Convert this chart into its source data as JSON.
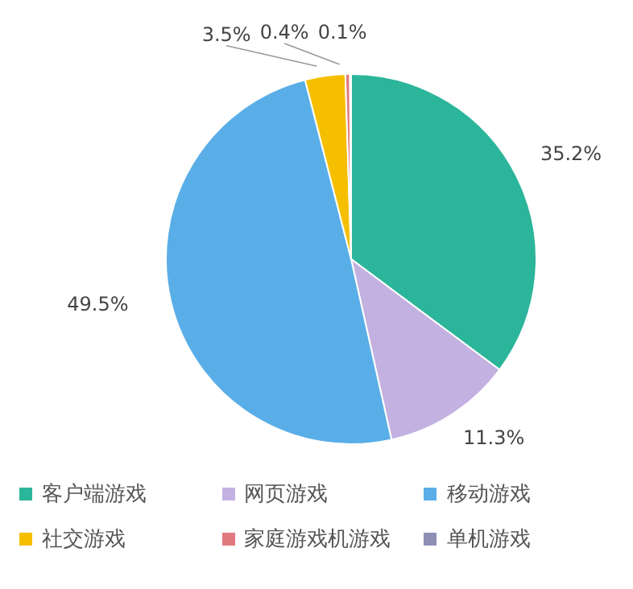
{
  "chart_data": {
    "type": "pie",
    "categories": [
      "客户端游戏",
      "网页游戏",
      "移动游戏",
      "社交游戏",
      "家庭游戏机游戏",
      "单机游戏"
    ],
    "values": [
      35.2,
      11.3,
      49.5,
      3.5,
      0.4,
      0.1
    ],
    "value_labels": [
      "35.2%",
      "11.3%",
      "49.5%",
      "3.5%",
      "0.4%",
      "0.1%"
    ],
    "colors": [
      "#2bb59a",
      "#c3b1e1",
      "#5aaee8",
      "#f5bf00",
      "#e07a7f",
      "#8e8fb5"
    ],
    "legend": "bottom"
  }
}
